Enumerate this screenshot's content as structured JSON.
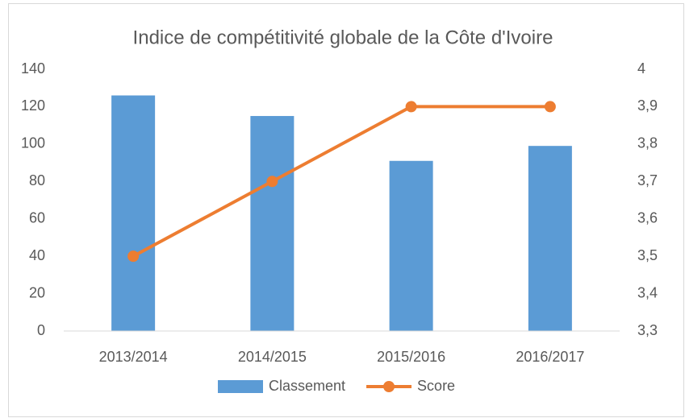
{
  "chart_data": {
    "type": "bar_line",
    "title": "Indice de compétitivité globale de la Côte d'Ivoire",
    "categories": [
      "2013/2014",
      "2014/2015",
      "2015/2016",
      "2016/2017"
    ],
    "series": [
      {
        "name": "Classement",
        "type": "bar",
        "color": "#5b9bd5",
        "values": [
          126,
          115,
          91,
          99
        ]
      },
      {
        "name": "Score",
        "type": "line",
        "axis": "y2",
        "color": "#ed7d31",
        "values": [
          3.5,
          3.7,
          3.9,
          3.9
        ]
      }
    ],
    "ylim": [
      0,
      140
    ],
    "yticks": [
      0,
      20,
      40,
      60,
      80,
      100,
      120,
      140
    ],
    "y2lim": [
      3.3,
      4
    ],
    "y2ticks": [
      {
        "value": 3.3,
        "label": "3,3"
      },
      {
        "value": 3.4,
        "label": "3,4"
      },
      {
        "value": 3.5,
        "label": "3,5"
      },
      {
        "value": 3.6,
        "label": "3,6"
      },
      {
        "value": 3.7,
        "label": "3,7"
      },
      {
        "value": 3.8,
        "label": "3,8"
      },
      {
        "value": 3.9,
        "label": "3,9"
      },
      4
    ],
    "grid": false,
    "legend": "bottom"
  }
}
